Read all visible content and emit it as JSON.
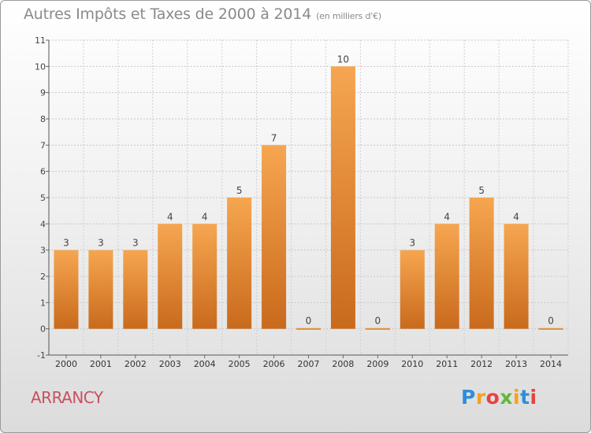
{
  "header": {
    "title": "Autres Impôts et Taxes de 2000 à 2014",
    "unit": "(en milliers d'€)"
  },
  "footer": {
    "commune": "ARRANCY",
    "logo": "Proxiti"
  },
  "colors": {
    "bar_light": "#f6a650",
    "bar_dark": "#c96a1c",
    "commune": "#c85060",
    "title": "#8a8a8a"
  },
  "chart_data": {
    "type": "bar",
    "title": "Autres Impôts et Taxes de 2000 à 2014",
    "subtitle": "(en milliers d'€)",
    "categories": [
      "2000",
      "2001",
      "2002",
      "2003",
      "2004",
      "2005",
      "2006",
      "2007",
      "2008",
      "2009",
      "2010",
      "2011",
      "2012",
      "2013",
      "2014"
    ],
    "values": [
      3,
      3,
      3,
      4,
      4,
      5,
      7,
      0,
      10,
      0,
      3,
      4,
      5,
      4,
      0
    ],
    "yticks": [
      -1,
      0,
      1,
      2,
      3,
      4,
      5,
      6,
      7,
      8,
      9,
      10,
      11
    ],
    "ylim": [
      -1,
      11
    ],
    "grid": true,
    "xlabel": "",
    "ylabel": ""
  }
}
